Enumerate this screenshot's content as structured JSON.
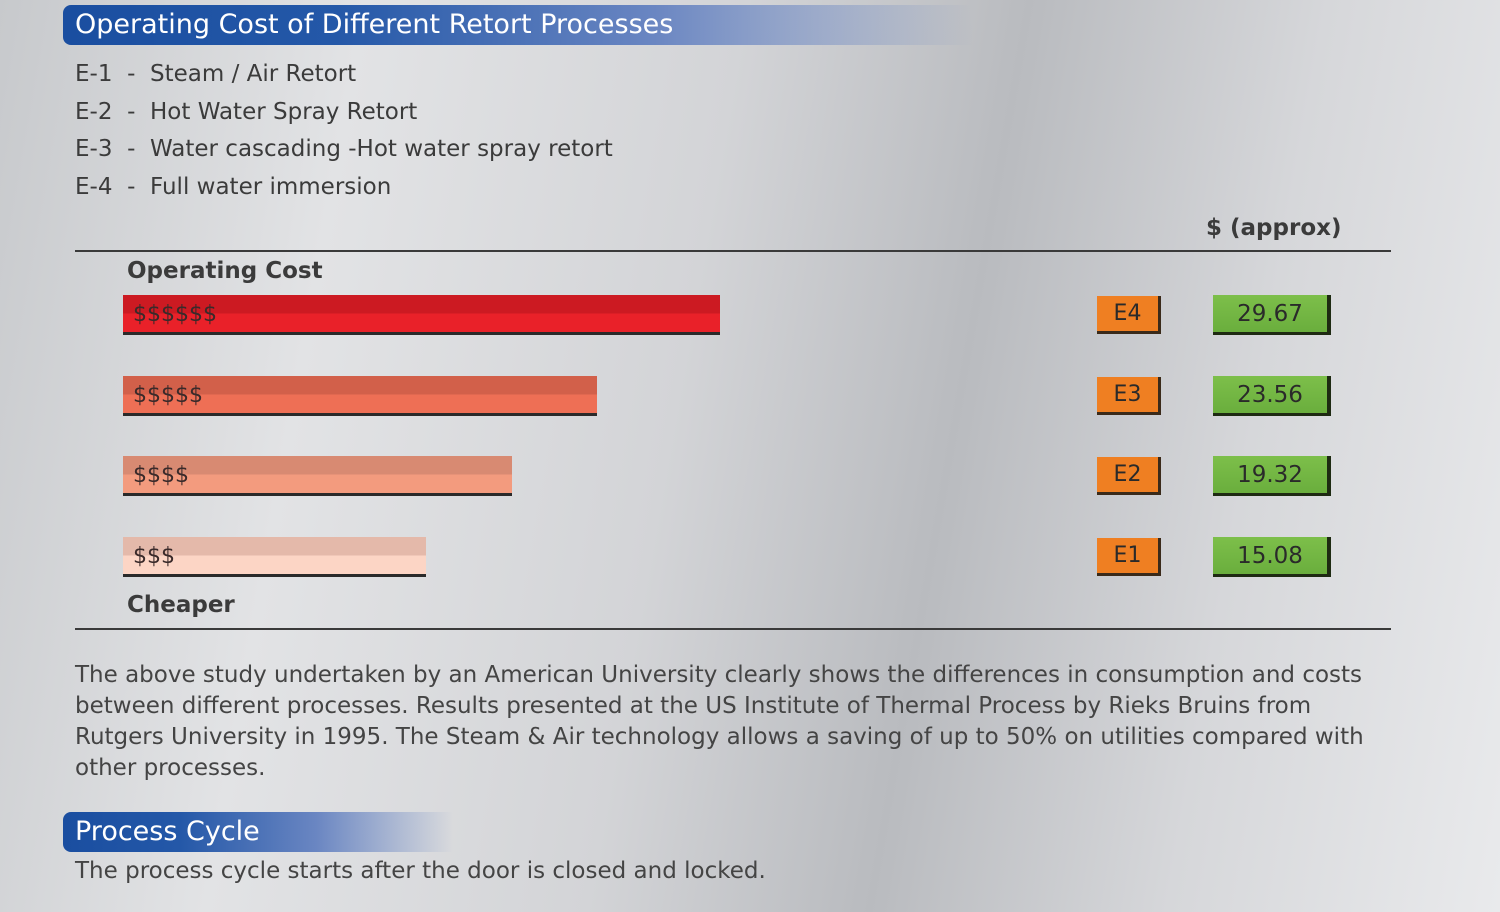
{
  "title": "Operating Cost of Different Retort Processes",
  "legend": [
    {
      "code": "E-1",
      "sep": "-",
      "label": "Steam / Air Retort"
    },
    {
      "code": "E-2",
      "sep": "-",
      "label": "Hot Water Spray Retort"
    },
    {
      "code": "E-3",
      "sep": "-",
      "label": "Water cascading -Hot water spray retort"
    },
    {
      "code": "E-4",
      "sep": "-",
      "label": "Full water immersion"
    }
  ],
  "unit_label": "$ (approx)",
  "top_label": "Operating Cost",
  "bottom_label": "Cheaper",
  "chart_data": {
    "type": "bar",
    "orientation": "horizontal",
    "categories": [
      "E4",
      "E3",
      "E2",
      "E1"
    ],
    "bar_labels": [
      "$$$$$$",
      "$$$$$",
      "$$$$",
      "$$$"
    ],
    "values": [
      29.67,
      23.56,
      19.32,
      15.08
    ],
    "value_labels": [
      "29.67",
      "23.56",
      "19.32",
      "15.08"
    ],
    "colors": [
      {
        "top": "#cc1a22",
        "bottom": "#e92129"
      },
      {
        "top": "#d2604a",
        "bottom": "#ee6f55"
      },
      {
        "top": "#d88a72",
        "bottom": "#f39b7e"
      },
      {
        "top": "#e4b9aa",
        "bottom": "#fcd5c5"
      }
    ],
    "tag_color": "#ef7f22",
    "value_color": "#6aae3d"
  },
  "paragraph": "The above study undertaken by an American University clearly shows the differences in consumption and costs between different processes. Results presented at the US Institute of Thermal Process by Rieks Bruins from Rutgers University in 1995. The Steam & Air technology allows a saving of up to 50% on utilities compared with other processes.",
  "section2_title": "Process Cycle",
  "section2_text": "The process cycle starts after the door is closed and locked."
}
